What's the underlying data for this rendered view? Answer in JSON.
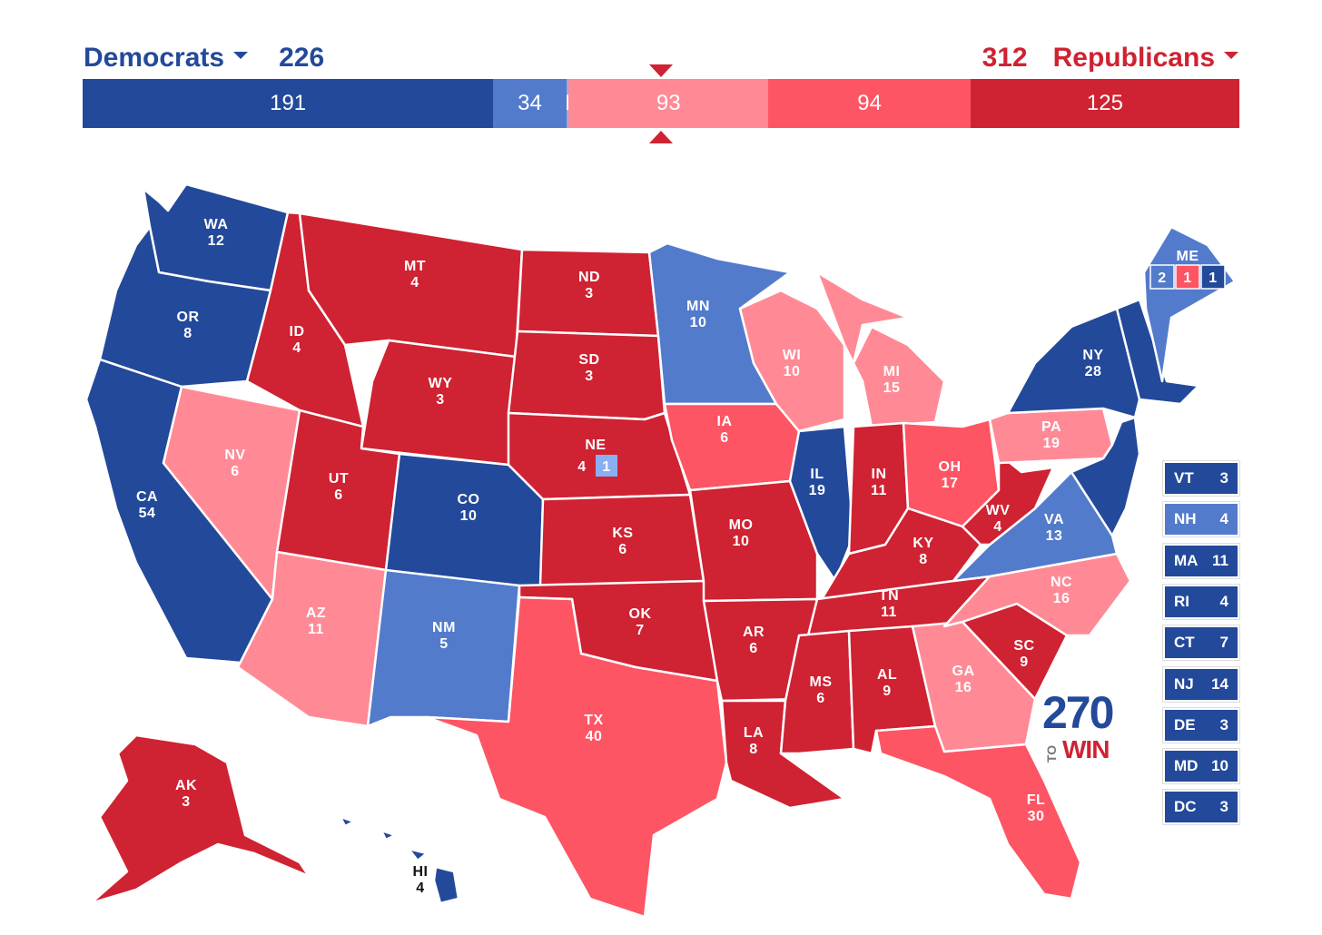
{
  "header": {
    "dem_label": "Democrats",
    "dem_total": "226",
    "rep_total": "312",
    "rep_label": "Republicans"
  },
  "colors": {
    "safe_dem": "#23499a",
    "likely_dem": "#537bcc",
    "lean_dem": "#8aaff0",
    "lean_rep": "#ff8a96",
    "likely_rep": "#fd5564",
    "safe_rep": "#cf2232"
  },
  "bar": [
    {
      "key": "safe_dem",
      "value": 191,
      "label": "191"
    },
    {
      "key": "likely_dem",
      "value": 34,
      "label": "34"
    },
    {
      "key": "lean_dem",
      "value": 1,
      "label": "1"
    },
    {
      "key": "lean_rep",
      "value": 93,
      "label": "93"
    },
    {
      "key": "likely_rep",
      "value": 94,
      "label": "94"
    },
    {
      "key": "safe_rep",
      "value": 125,
      "label": "125"
    }
  ],
  "states": {
    "WA": {
      "abbr": "WA",
      "ev": "12",
      "rating": "safe_dem"
    },
    "OR": {
      "abbr": "OR",
      "ev": "8",
      "rating": "safe_dem"
    },
    "CA": {
      "abbr": "CA",
      "ev": "54",
      "rating": "safe_dem"
    },
    "NV": {
      "abbr": "NV",
      "ev": "6",
      "rating": "lean_rep"
    },
    "ID": {
      "abbr": "ID",
      "ev": "4",
      "rating": "safe_rep"
    },
    "MT": {
      "abbr": "MT",
      "ev": "4",
      "rating": "safe_rep"
    },
    "WY": {
      "abbr": "WY",
      "ev": "3",
      "rating": "safe_rep"
    },
    "UT": {
      "abbr": "UT",
      "ev": "6",
      "rating": "safe_rep"
    },
    "AZ": {
      "abbr": "AZ",
      "ev": "11",
      "rating": "lean_rep"
    },
    "CO": {
      "abbr": "CO",
      "ev": "10",
      "rating": "safe_dem"
    },
    "NM": {
      "abbr": "NM",
      "ev": "5",
      "rating": "likely_dem"
    },
    "ND": {
      "abbr": "ND",
      "ev": "3",
      "rating": "safe_rep"
    },
    "SD": {
      "abbr": "SD",
      "ev": "3",
      "rating": "safe_rep"
    },
    "NE": {
      "abbr": "NE",
      "ev": "4",
      "rating": "safe_rep",
      "district_ev": "1",
      "district_rating": "lean_dem"
    },
    "KS": {
      "abbr": "KS",
      "ev": "6",
      "rating": "safe_rep"
    },
    "OK": {
      "abbr": "OK",
      "ev": "7",
      "rating": "safe_rep"
    },
    "TX": {
      "abbr": "TX",
      "ev": "40",
      "rating": "likely_rep"
    },
    "MN": {
      "abbr": "MN",
      "ev": "10",
      "rating": "likely_dem"
    },
    "IA": {
      "abbr": "IA",
      "ev": "6",
      "rating": "likely_rep"
    },
    "MO": {
      "abbr": "MO",
      "ev": "10",
      "rating": "safe_rep"
    },
    "AR": {
      "abbr": "AR",
      "ev": "6",
      "rating": "safe_rep"
    },
    "LA": {
      "abbr": "LA",
      "ev": "8",
      "rating": "safe_rep"
    },
    "WI": {
      "abbr": "WI",
      "ev": "10",
      "rating": "lean_rep"
    },
    "IL": {
      "abbr": "IL",
      "ev": "19",
      "rating": "safe_dem"
    },
    "MI": {
      "abbr": "MI",
      "ev": "15",
      "rating": "lean_rep"
    },
    "IN": {
      "abbr": "IN",
      "ev": "11",
      "rating": "safe_rep"
    },
    "OH": {
      "abbr": "OH",
      "ev": "17",
      "rating": "likely_rep"
    },
    "KY": {
      "abbr": "KY",
      "ev": "8",
      "rating": "safe_rep"
    },
    "TN": {
      "abbr": "TN",
      "ev": "11",
      "rating": "safe_rep"
    },
    "MS": {
      "abbr": "MS",
      "ev": "6",
      "rating": "safe_rep"
    },
    "AL": {
      "abbr": "AL",
      "ev": "9",
      "rating": "safe_rep"
    },
    "GA": {
      "abbr": "GA",
      "ev": "16",
      "rating": "lean_rep"
    },
    "FL": {
      "abbr": "FL",
      "ev": "30",
      "rating": "likely_rep"
    },
    "SC": {
      "abbr": "SC",
      "ev": "9",
      "rating": "safe_rep"
    },
    "NC": {
      "abbr": "NC",
      "ev": "16",
      "rating": "lean_rep"
    },
    "VA": {
      "abbr": "VA",
      "ev": "13",
      "rating": "likely_dem"
    },
    "WV": {
      "abbr": "WV",
      "ev": "4",
      "rating": "safe_rep"
    },
    "PA": {
      "abbr": "PA",
      "ev": "19",
      "rating": "lean_rep"
    },
    "NY": {
      "abbr": "NY",
      "ev": "28",
      "rating": "safe_dem"
    },
    "AK": {
      "abbr": "AK",
      "ev": "3",
      "rating": "safe_rep"
    },
    "HI": {
      "abbr": "HI",
      "ev": "4",
      "rating": "safe_dem"
    },
    "ME": {
      "abbr": "ME",
      "rating": "likely_dem",
      "splits": [
        {
          "ev": "2",
          "rating": "likely_dem"
        },
        {
          "ev": "1",
          "rating": "likely_rep"
        },
        {
          "ev": "1",
          "rating": "safe_dem"
        }
      ]
    }
  },
  "small_states": [
    {
      "abbr": "VT",
      "ev": "3",
      "rating": "safe_dem"
    },
    {
      "abbr": "NH",
      "ev": "4",
      "rating": "likely_dem"
    },
    {
      "abbr": "MA",
      "ev": "11",
      "rating": "safe_dem"
    },
    {
      "abbr": "RI",
      "ev": "4",
      "rating": "safe_dem"
    },
    {
      "abbr": "CT",
      "ev": "7",
      "rating": "safe_dem"
    },
    {
      "abbr": "NJ",
      "ev": "14",
      "rating": "safe_dem"
    },
    {
      "abbr": "DE",
      "ev": "3",
      "rating": "safe_dem"
    },
    {
      "abbr": "MD",
      "ev": "10",
      "rating": "safe_dem"
    },
    {
      "abbr": "DC",
      "ev": "3",
      "rating": "safe_dem"
    }
  ],
  "logo": {
    "number": "270",
    "to": "TO",
    "win": "WIN"
  }
}
